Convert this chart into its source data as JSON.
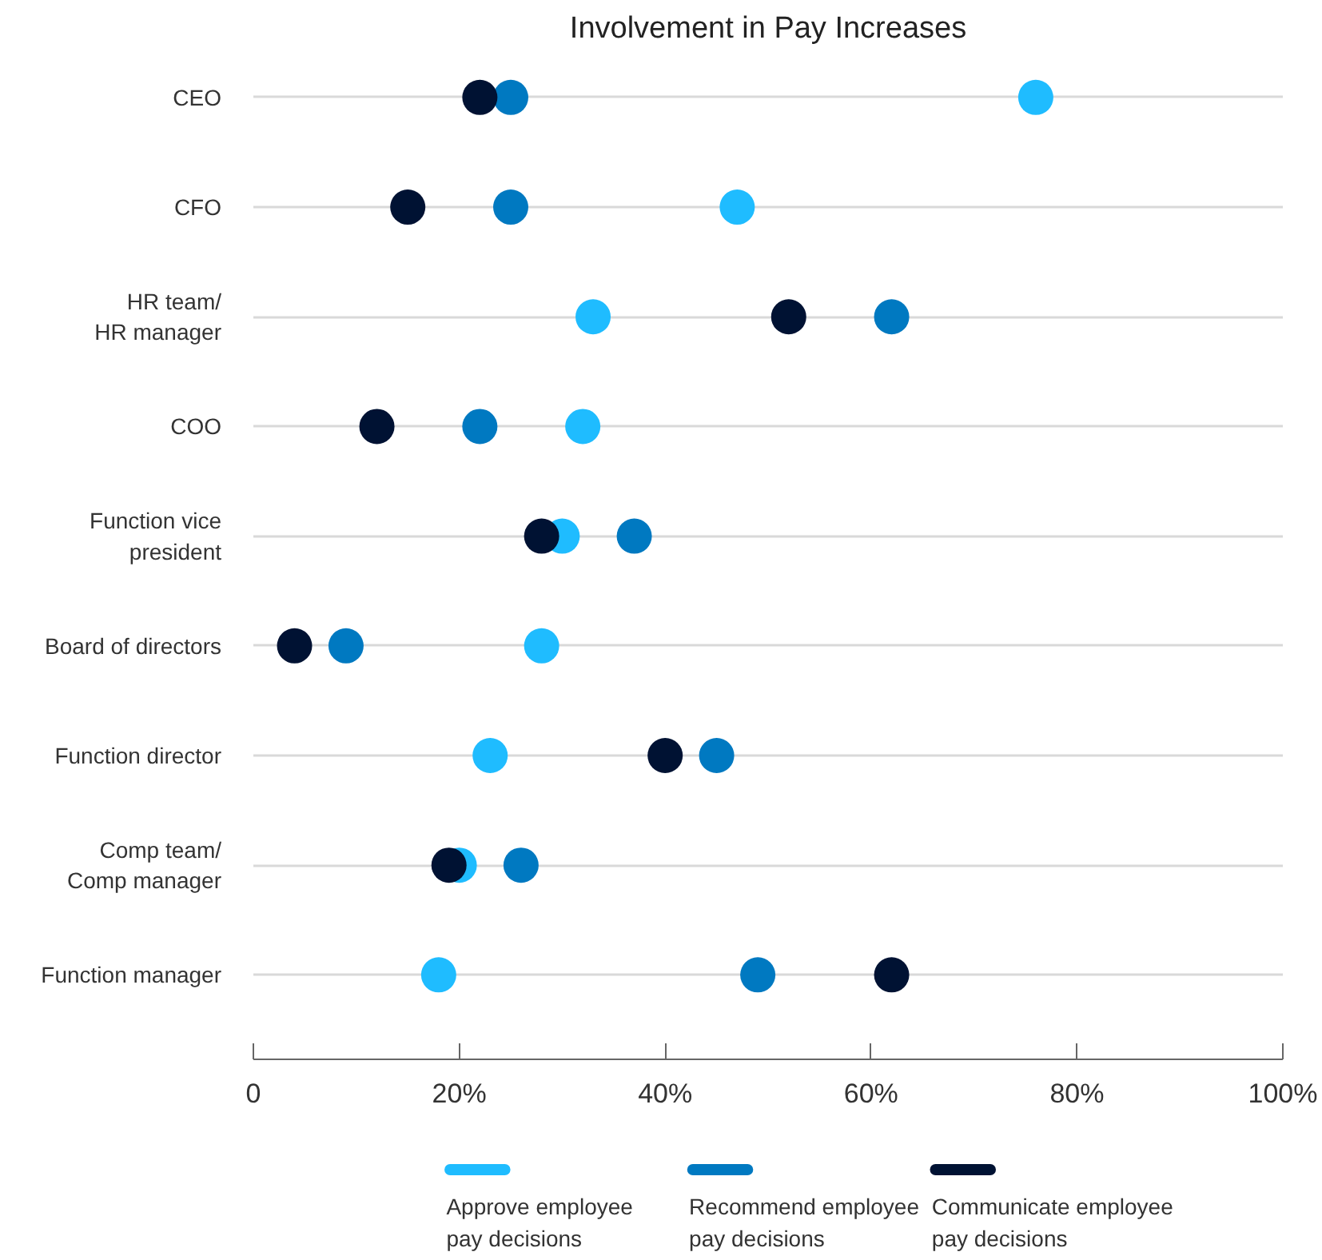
{
  "chart_data": {
    "type": "scatter",
    "title": "Involvement in Pay Increases",
    "categories": [
      "CEO",
      "CFO",
      "HR team/\nHR manager",
      "COO",
      "Function vice\npresident",
      "Board of directors",
      "Function director",
      "Comp team/\nComp manager",
      "Function manager"
    ],
    "orientation": "horizontal",
    "marker": "circle",
    "grid": "y",
    "legend": "bottom",
    "xlim": [
      0,
      100
    ],
    "xticks": [
      0,
      {
        "value": 20,
        "label": "20%"
      },
      {
        "value": 40,
        "label": "40%"
      },
      {
        "value": 60,
        "label": "60%"
      },
      {
        "value": 80,
        "label": "80%"
      },
      {
        "value": 100,
        "label": "100%"
      }
    ],
    "series": [
      {
        "name": "Approve employee\npay decisions",
        "color": "#1fbcff",
        "values": [
          76,
          47,
          33,
          32,
          30,
          28,
          23,
          20,
          18
        ]
      },
      {
        "name": "Recommend employee\npay decisions",
        "color": "#0079c1",
        "values": [
          25,
          25,
          62,
          22,
          37,
          9,
          45,
          26,
          49
        ]
      },
      {
        "name": "Communicate employee\npay decisions",
        "color": "#001233",
        "values": [
          22,
          15,
          52,
          12,
          28,
          4,
          40,
          19,
          62
        ]
      }
    ]
  }
}
